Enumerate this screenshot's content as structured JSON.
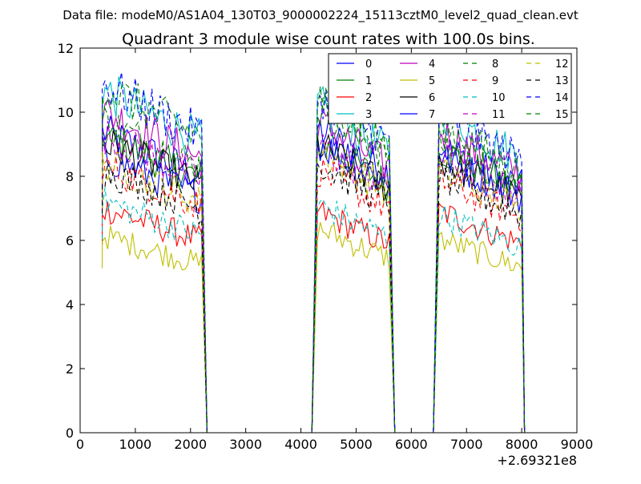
{
  "chart_data": {
    "type": "line",
    "suptitle": "Data file: modeM0/AS1A04_130T03_9000002224_15113cztM0_level2_quad_clean.evt",
    "title": "Quadrant 3 module wise count rates with 100.0s bins.",
    "xlabel": "",
    "ylabel": "",
    "xlim": [
      0,
      9000
    ],
    "ylim": [
      0,
      12
    ],
    "x_offset_label": "+2.69321e8",
    "xticks": [
      "0",
      "1000",
      "2000",
      "3000",
      "4000",
      "5000",
      "6000",
      "7000",
      "8000",
      "9000"
    ],
    "yticks": [
      "0",
      "2",
      "4",
      "6",
      "8",
      "10",
      "12"
    ],
    "grid": false,
    "legend": {
      "placement": "top-right",
      "columns": 4
    },
    "segments": [
      {
        "start": 400,
        "end": 2200,
        "drop": 2300
      },
      {
        "start": 4300,
        "end": 5600,
        "drop": 5700
      },
      {
        "start": 6500,
        "end": 8000,
        "drop": 8050
      }
    ],
    "series": [
      {
        "name": "0",
        "color": "#0000ff",
        "dash": "solid",
        "levels": [
          8.7,
          8.8,
          8.3
        ]
      },
      {
        "name": "1",
        "color": "#008000",
        "dash": "solid",
        "levels": [
          8.6,
          8.4,
          8.2
        ]
      },
      {
        "name": "2",
        "color": "#ff0000",
        "dash": "solid",
        "levels": [
          6.5,
          6.4,
          6.4
        ]
      },
      {
        "name": "3",
        "color": "#00bfbf",
        "dash": "solid",
        "levels": [
          9.9,
          9.5,
          9.3
        ]
      },
      {
        "name": "4",
        "color": "#bf00bf",
        "dash": "solid",
        "levels": [
          9.3,
          9.0,
          8.7
        ]
      },
      {
        "name": "5",
        "color": "#bfbf00",
        "dash": "solid",
        "levels": [
          5.7,
          5.9,
          5.6
        ]
      },
      {
        "name": "6",
        "color": "#000000",
        "dash": "solid",
        "levels": [
          8.4,
          8.3,
          7.9
        ]
      },
      {
        "name": "7",
        "color": "#0000ff",
        "dash": "solid",
        "levels": [
          8.0,
          8.4,
          8.0
        ]
      },
      {
        "name": "8",
        "color": "#008000",
        "dash": "dashed",
        "levels": [
          9.0,
          9.4,
          8.4
        ]
      },
      {
        "name": "9",
        "color": "#ff0000",
        "dash": "dashed",
        "levels": [
          7.7,
          7.6,
          7.3
        ]
      },
      {
        "name": "10",
        "color": "#00bfbf",
        "dash": "dashed",
        "levels": [
          6.7,
          6.6,
          6.3
        ]
      },
      {
        "name": "11",
        "color": "#bf00bf",
        "dash": "dashed",
        "levels": [
          8.6,
          8.3,
          8.0
        ]
      },
      {
        "name": "12",
        "color": "#bfbf00",
        "dash": "dashed",
        "levels": [
          7.8,
          8.2,
          7.6
        ]
      },
      {
        "name": "13",
        "color": "#000000",
        "dash": "dashed",
        "levels": [
          7.6,
          7.8,
          7.4
        ]
      },
      {
        "name": "14",
        "color": "#0000ff",
        "dash": "dashed",
        "levels": [
          10.1,
          9.8,
          9.2
        ]
      },
      {
        "name": "15",
        "color": "#008000",
        "dash": "dashed",
        "levels": [
          10.0,
          9.6,
          8.9
        ]
      }
    ]
  }
}
